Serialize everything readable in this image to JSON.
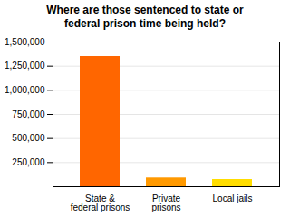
{
  "chart_data": {
    "type": "bar",
    "title": "Where are those sentenced to state or\nfederal prison time being held?",
    "categories": [
      "State &\nfederal prisons",
      "Private\nprisons",
      "Local jails"
    ],
    "values": [
      1350000,
      91000,
      75000
    ],
    "colors": [
      "#FF6600",
      "#FF9900",
      "#FFDD00"
    ],
    "ylim": [
      0,
      1500000
    ],
    "yticks": [
      {
        "value": 250000,
        "label": "250,000"
      },
      {
        "value": 500000,
        "label": "500,000"
      },
      {
        "value": 750000,
        "label": "750,000"
      },
      {
        "value": 1000000,
        "label": "1,000,000"
      },
      {
        "value": 1250000,
        "label": "1,250,000"
      },
      {
        "value": 1500000,
        "label": "1,500,000"
      }
    ],
    "grid": true
  }
}
